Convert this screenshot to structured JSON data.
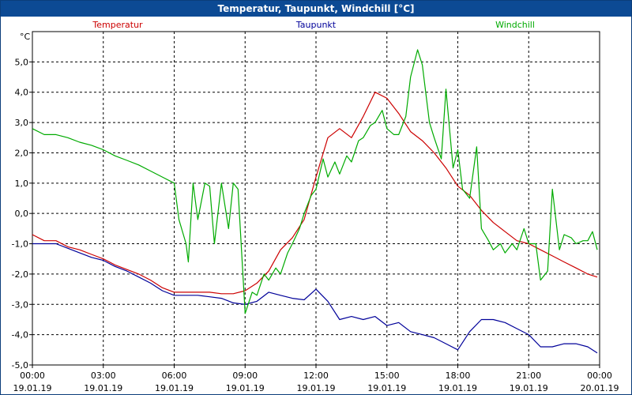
{
  "window": {
    "title": "Temperatur, Taupunkt, Windchill [°C]"
  },
  "chart_data": {
    "type": "line",
    "title": "Temperatur, Taupunkt, Windchill [°C]",
    "ylabel": "°C",
    "ylim": [
      -5.0,
      6.0
    ],
    "y_ticks": [
      5.0,
      4.0,
      3.0,
      2.0,
      1.0,
      0.0,
      -1.0,
      -2.0,
      -3.0,
      -4.0,
      -5.0
    ],
    "y_tick_labels": [
      "5,0",
      "4,0",
      "3,0",
      "2,0",
      "1,0",
      "0,0",
      "-1,0",
      "-2,0",
      "-3,0",
      "-4,0",
      "-5,0"
    ],
    "xlim": [
      0,
      24
    ],
    "x_ticks": [
      {
        "hour": 0,
        "time": "00:00",
        "date": "19.01.19"
      },
      {
        "hour": 3,
        "time": "03:00",
        "date": "19.01.19"
      },
      {
        "hour": 6,
        "time": "06:00",
        "date": "19.01.19"
      },
      {
        "hour": 9,
        "time": "09:00",
        "date": "19.01.19"
      },
      {
        "hour": 12,
        "time": "12:00",
        "date": "19.01.19"
      },
      {
        "hour": 15,
        "time": "15:00",
        "date": "19.01.19"
      },
      {
        "hour": 18,
        "time": "18:00",
        "date": "19.01.19"
      },
      {
        "hour": 21,
        "time": "21:00",
        "date": "19.01.19"
      },
      {
        "hour": 24,
        "time": "00:00",
        "date": "20.01.19"
      }
    ],
    "grid": true,
    "series": [
      {
        "name": "Temperatur",
        "color": "#cc0000",
        "x": [
          0,
          0.5,
          1,
          1.5,
          2,
          2.5,
          3,
          3.5,
          4,
          4.5,
          5,
          5.5,
          6,
          6.5,
          7,
          7.5,
          8,
          8.5,
          9,
          9.5,
          10,
          10.5,
          11,
          11.5,
          12,
          12.5,
          13,
          13.5,
          14,
          14.5,
          15,
          15.5,
          16,
          16.5,
          17,
          17.5,
          18,
          18.5,
          19,
          19.5,
          20,
          20.5,
          21,
          21.5,
          22,
          22.5,
          23,
          23.5,
          23.9
        ],
        "y": [
          -0.7,
          -0.9,
          -0.9,
          -1.1,
          -1.2,
          -1.35,
          -1.5,
          -1.7,
          -1.85,
          -2.0,
          -2.2,
          -2.45,
          -2.6,
          -2.6,
          -2.6,
          -2.6,
          -2.65,
          -2.65,
          -2.55,
          -2.3,
          -1.9,
          -1.2,
          -0.8,
          -0.2,
          1.2,
          2.5,
          2.8,
          2.5,
          3.2,
          4.0,
          3.8,
          3.3,
          2.7,
          2.4,
          2.0,
          1.5,
          0.9,
          0.6,
          0.1,
          -0.3,
          -0.6,
          -0.9,
          -1.0,
          -1.2,
          -1.4,
          -1.6,
          -1.8,
          -2.0,
          -2.1
        ]
      },
      {
        "name": "Taupunkt",
        "color": "#000099",
        "x": [
          0,
          0.5,
          1,
          1.5,
          2,
          2.5,
          3,
          3.5,
          4,
          4.5,
          5,
          5.5,
          6,
          6.5,
          7,
          7.5,
          8,
          8.5,
          9,
          9.5,
          10,
          10.5,
          11,
          11.5,
          12,
          12.5,
          13,
          13.5,
          14,
          14.5,
          15,
          15.5,
          16,
          16.5,
          17,
          17.5,
          18,
          18.5,
          19,
          19.5,
          20,
          20.5,
          21,
          21.5,
          22,
          22.5,
          23,
          23.5,
          23.9
        ],
        "y": [
          -1.0,
          -1.0,
          -1.0,
          -1.15,
          -1.3,
          -1.45,
          -1.55,
          -1.75,
          -1.9,
          -2.1,
          -2.3,
          -2.55,
          -2.7,
          -2.7,
          -2.7,
          -2.75,
          -2.8,
          -2.95,
          -3.0,
          -2.9,
          -2.6,
          -2.7,
          -2.8,
          -2.85,
          -2.5,
          -2.9,
          -3.5,
          -3.4,
          -3.5,
          -3.4,
          -3.7,
          -3.6,
          -3.9,
          -4.0,
          -4.1,
          -4.3,
          -4.5,
          -3.9,
          -3.5,
          -3.5,
          -3.6,
          -3.8,
          -4.0,
          -4.4,
          -4.4,
          -4.3,
          -4.3,
          -4.4,
          -4.6
        ]
      },
      {
        "name": "Windchill",
        "color": "#00aa00",
        "x": [
          0,
          0.5,
          1,
          1.5,
          2,
          2.5,
          3,
          3.5,
          4,
          4.5,
          5,
          5.5,
          6,
          6.2,
          6.5,
          6.6,
          6.8,
          7.0,
          7.3,
          7.5,
          7.7,
          8.0,
          8.3,
          8.5,
          8.7,
          9.0,
          9.3,
          9.5,
          9.8,
          10.0,
          10.3,
          10.5,
          10.8,
          11.0,
          11.3,
          11.5,
          11.8,
          12.0,
          12.3,
          12.5,
          12.8,
          13.0,
          13.3,
          13.5,
          13.8,
          14.0,
          14.3,
          14.5,
          14.8,
          15.0,
          15.3,
          15.5,
          15.8,
          16.0,
          16.3,
          16.5,
          16.8,
          17.0,
          17.3,
          17.5,
          17.8,
          18.0,
          18.2,
          18.5,
          18.8,
          19.0,
          19.3,
          19.5,
          19.8,
          20.0,
          20.3,
          20.5,
          20.8,
          21.0,
          21.3,
          21.5,
          21.8,
          22.0,
          22.3,
          22.5,
          22.8,
          23.0,
          23.3,
          23.5,
          23.7,
          23.9
        ],
        "y": [
          2.8,
          2.6,
          2.6,
          2.5,
          2.35,
          2.25,
          2.1,
          1.9,
          1.75,
          1.6,
          1.4,
          1.2,
          1.0,
          -0.2,
          -1.0,
          -1.6,
          1.0,
          -0.2,
          1.0,
          0.9,
          -1.0,
          1.0,
          -0.5,
          1.0,
          0.8,
          -3.3,
          -2.6,
          -2.7,
          -2.0,
          -2.2,
          -1.8,
          -2.0,
          -1.3,
          -1.0,
          -0.5,
          0.0,
          0.6,
          0.8,
          1.8,
          1.2,
          1.7,
          1.3,
          1.9,
          1.7,
          2.4,
          2.5,
          2.9,
          3.0,
          3.4,
          2.8,
          2.6,
          2.6,
          3.2,
          4.5,
          5.4,
          4.9,
          3.0,
          2.5,
          1.8,
          4.1,
          1.5,
          2.1,
          0.8,
          0.5,
          2.2,
          -0.5,
          -0.9,
          -1.2,
          -1.0,
          -1.3,
          -1.0,
          -1.2,
          -0.5,
          -1.0,
          -1.0,
          -2.2,
          -1.9,
          0.8,
          -1.2,
          -0.7,
          -0.8,
          -1.0,
          -0.9,
          -0.9,
          -0.6,
          -1.2
        ]
      }
    ]
  }
}
